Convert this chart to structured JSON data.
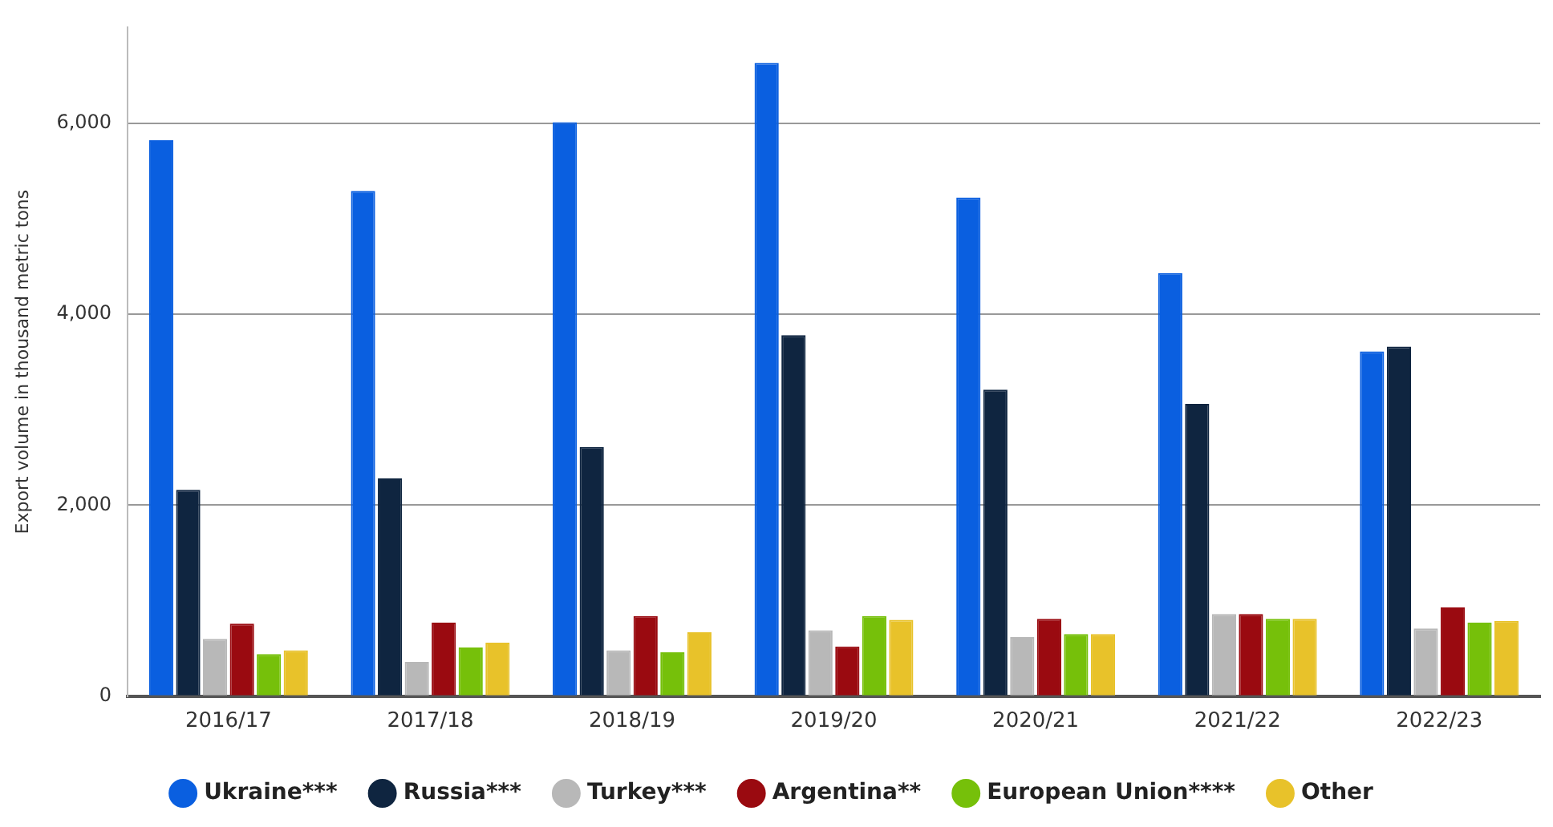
{
  "chart_data": {
    "type": "bar",
    "ylabel": "Export volume in thousand metric tons",
    "categories": [
      "2016/17",
      "2017/18",
      "2018/19",
      "2019/20",
      "2020/21",
      "2021/22",
      "2022/23"
    ],
    "series": [
      {
        "name": "Ukraine***",
        "color": "#0a5fe0",
        "values": [
          5820,
          5290,
          6010,
          6630,
          5220,
          4430,
          3610
        ]
      },
      {
        "name": "Russia***",
        "color": "#0f2540",
        "values": [
          2160,
          2280,
          2610,
          3780,
          3210,
          3060,
          3660
        ]
      },
      {
        "name": "Turkey***",
        "color": "#b8b8b8",
        "values": [
          600,
          360,
          480,
          690,
          620,
          860,
          710
        ]
      },
      {
        "name": "Argentina**",
        "color": "#9a0a10",
        "values": [
          760,
          770,
          840,
          520,
          810,
          860,
          930
        ]
      },
      {
        "name": "European Union****",
        "color": "#76c00a",
        "values": [
          440,
          510,
          460,
          840,
          650,
          810,
          770
        ]
      },
      {
        "name": "Other",
        "color": "#e8c22a",
        "values": [
          480,
          560,
          670,
          800,
          650,
          810,
          790
        ]
      }
    ],
    "ylim": [
      0,
      7000
    ],
    "yticks": [
      0,
      {
        "value": 2000,
        "label": "2,000"
      },
      {
        "value": 4000,
        "label": "4,000"
      },
      {
        "value": 6000,
        "label": "6,000"
      }
    ],
    "grid": "y",
    "legend": "bottom"
  }
}
